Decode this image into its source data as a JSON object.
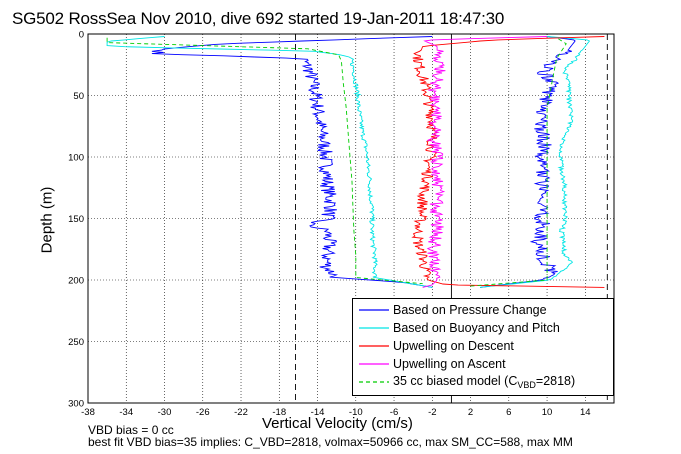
{
  "chart_data": {
    "type": "line",
    "title": "SG502 RossSea Nov 2010, dive 692 started 19-Jan-2011 18:47:30",
    "xlabel": "Vertical Velocity (cm/s)",
    "ylabel": "Depth (m)",
    "xlim": [
      -38,
      17
    ],
    "ylim": [
      300,
      0
    ],
    "y_reversed": true,
    "grid": true,
    "xticks": [
      -38,
      -34,
      -30,
      -26,
      -22,
      -18,
      -14,
      -10,
      -6,
      -2,
      2,
      6,
      10,
      14
    ],
    "yticks": [
      0,
      50,
      100,
      150,
      200,
      250,
      300
    ],
    "vertical_reference_lines": [
      -16.3,
      0,
      16.3
    ],
    "legend_position": "bottom-right",
    "series": [
      {
        "name": "Based on Pressure Change",
        "color": "#0000ff",
        "side": "both",
        "down_depth": [
          2,
          8,
          12,
          16,
          20,
          30,
          40,
          50,
          60,
          70,
          80,
          90,
          100,
          110,
          120,
          130,
          140,
          150,
          155,
          160,
          170,
          180,
          190,
          198,
          202,
          206
        ],
        "down_x": [
          -2,
          -24,
          -30,
          -31,
          -15.5,
          -14.8,
          -14.5,
          -14.2,
          -14,
          -13.8,
          -13.6,
          -13.3,
          -13.2,
          -13,
          -13,
          -12.8,
          -12.5,
          -13,
          -15,
          -13,
          -12.8,
          -13,
          -13,
          -12,
          -5,
          -2
        ],
        "up_depth": [
          206,
          200,
          192,
          180,
          170,
          160,
          150,
          140,
          130,
          120,
          110,
          100,
          90,
          80,
          70,
          60,
          50,
          40,
          30,
          20,
          10,
          5,
          2
        ],
        "up_x": [
          3,
          9.5,
          10.5,
          9.5,
          9,
          9.5,
          9.5,
          9.3,
          9.2,
          9.5,
          9.5,
          9.3,
          9.8,
          9.5,
          9.3,
          9.8,
          10,
          10.5,
          9.5,
          11.5,
          12.5,
          13,
          10
        ]
      },
      {
        "name": "Based on Buoyancy and Pitch",
        "color": "#00e5e5",
        "side": "both",
        "down_depth": [
          2,
          6,
          10,
          14,
          17,
          20,
          30,
          40,
          50,
          60,
          70,
          80,
          90,
          100,
          110,
          120,
          130,
          140,
          150,
          160,
          170,
          180,
          190,
          198,
          202,
          206
        ],
        "down_x": [
          -30,
          -36,
          -36,
          -14.5,
          -11.5,
          -10.5,
          -10.2,
          -10,
          -9.8,
          -9.7,
          -9.5,
          -9.3,
          -9,
          -8.8,
          -8.7,
          -8.5,
          -8.5,
          -8.3,
          -8.3,
          -8.3,
          -8.2,
          -8,
          -8,
          -8,
          -5,
          -2
        ],
        "up_depth": [
          206,
          200,
          192,
          186,
          180,
          170,
          160,
          150,
          140,
          130,
          120,
          110,
          100,
          90,
          80,
          70,
          60,
          50,
          40,
          30,
          20,
          10,
          5,
          2
        ],
        "up_x": [
          3,
          10.3,
          11.8,
          12.5,
          11.8,
          11.8,
          11.5,
          12,
          11.8,
          11.8,
          11.8,
          11.5,
          11.5,
          11.5,
          12,
          12.5,
          12.5,
          12.2,
          12.5,
          11.8,
          13,
          14,
          14.5,
          10
        ]
      },
      {
        "name": "Upwelling on Descent",
        "color": "#ff0000",
        "side": "descent",
        "depth": [
          2,
          5,
          10,
          20,
          30,
          40,
          50,
          60,
          70,
          80,
          90,
          100,
          110,
          120,
          130,
          140,
          150,
          160,
          170,
          180,
          190,
          200,
          204,
          206
        ],
        "x": [
          16,
          4,
          -3,
          -3.5,
          -3.2,
          -2.8,
          -2.5,
          -2.3,
          -2,
          -2,
          -2,
          -2.2,
          -2.5,
          -2.5,
          -3,
          -3,
          -3.2,
          -3.5,
          -3.5,
          -3,
          -2.8,
          -2.5,
          -0.5,
          16
        ]
      },
      {
        "name": "Upwelling on Ascent",
        "color": "#ff00ff",
        "side": "ascent",
        "depth": [
          206,
          204,
          200,
          190,
          180,
          170,
          160,
          150,
          140,
          130,
          120,
          110,
          100,
          90,
          80,
          70,
          60,
          50,
          40,
          30,
          20,
          10,
          5,
          2
        ],
        "x": [
          -3,
          -2,
          -1.5,
          -1.8,
          -1.8,
          -1.8,
          -1.5,
          -1.5,
          -1.6,
          -1.4,
          -1.5,
          -1.4,
          -1.5,
          -1.8,
          -1.8,
          -1.6,
          -1.5,
          -1.8,
          -1.6,
          -1.3,
          -1.5,
          -1.5,
          -3,
          10
        ]
      },
      {
        "name": "35 cc biased model (C_VBD=2818)",
        "color": "#00cc00",
        "side": "both",
        "dashed": true,
        "down_depth": [
          3,
          7,
          12,
          17,
          22,
          40,
          60,
          80,
          100,
          120,
          140,
          160,
          180,
          198,
          203
        ],
        "down_x": [
          -36,
          -36,
          -15,
          -11.8,
          -11.5,
          -11.3,
          -11,
          -10.8,
          -10.6,
          -10.4,
          -10.3,
          -10.2,
          -10,
          -10,
          -3
        ],
        "up_depth": [
          205,
          200,
          180,
          160,
          140,
          120,
          100,
          80,
          60,
          40,
          20,
          8,
          3
        ],
        "up_x": [
          2,
          10,
          10,
          10,
          10,
          10,
          10,
          10,
          10,
          10.5,
          11,
          12,
          11
        ]
      }
    ]
  },
  "legend": {
    "pressure": "Based on Pressure Change",
    "buoyancy": "Based on Buoyancy and Pitch",
    "upwelling_descent": "Upwelling on Descent",
    "upwelling_ascent": "Upwelling on Ascent",
    "model_prefix": "35 cc biased model (C",
    "model_sub": "VBD",
    "model_suffix": "=2818)"
  },
  "notes": {
    "line1": "VBD bias = 0 cc",
    "line2": "best fit VBD bias=35 implies: C_VBD=2818, volmax=50966 cc, max SM_CC=588, max MM"
  },
  "colors": {
    "pressure": "#0000ff",
    "buoyancy": "#00e5e5",
    "upwelling_descent": "#ff0000",
    "upwelling_ascent": "#ff00ff",
    "model": "#00cc00"
  }
}
